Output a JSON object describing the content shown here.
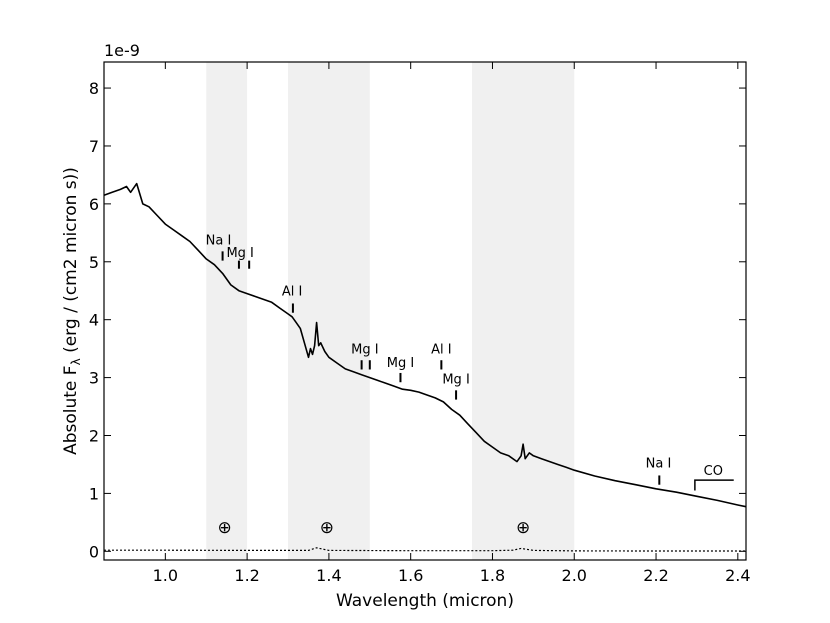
{
  "chart_data": {
    "type": "line",
    "title": "",
    "xlabel": "Wavelength (micron)",
    "ylabel_prefix": "Absolute F",
    "ylabel_sub": "λ",
    "ylabel_suffix": " (erg / (cm2 micron s))",
    "y_multiplier_label": "1e-9",
    "xlim": [
      0.85,
      2.42
    ],
    "ylim": [
      -0.15,
      8.45
    ],
    "grid": false,
    "legend": "none",
    "x_ticks": [
      {
        "v": 1.0,
        "label": "1.0"
      },
      {
        "v": 1.2,
        "label": "1.2"
      },
      {
        "v": 1.4,
        "label": "1.4"
      },
      {
        "v": 1.6,
        "label": "1.6"
      },
      {
        "v": 1.8,
        "label": "1.8"
      },
      {
        "v": 2.0,
        "label": "2.0"
      },
      {
        "v": 2.2,
        "label": "2.2"
      },
      {
        "v": 2.4,
        "label": "2.4"
      }
    ],
    "y_ticks": [
      {
        "v": 0,
        "label": "0"
      },
      {
        "v": 1,
        "label": "1"
      },
      {
        "v": 2,
        "label": "2"
      },
      {
        "v": 3,
        "label": "3"
      },
      {
        "v": 4,
        "label": "4"
      },
      {
        "v": 5,
        "label": "5"
      },
      {
        "v": 6,
        "label": "6"
      },
      {
        "v": 7,
        "label": "7"
      },
      {
        "v": 8,
        "label": "8"
      }
    ],
    "telluric_bands": [
      [
        1.1,
        1.2
      ],
      [
        1.3,
        1.5
      ],
      [
        1.75,
        2.0
      ]
    ],
    "telluric_symbols": [
      {
        "x": 1.145,
        "y": 0.42,
        "label": "⊕"
      },
      {
        "x": 1.395,
        "y": 0.42,
        "label": "⊕"
      },
      {
        "x": 1.875,
        "y": 0.42,
        "label": "⊕"
      }
    ],
    "series": [
      {
        "style": "solid",
        "color": "#000000",
        "x": [
          0.85,
          0.87,
          0.89,
          0.905,
          0.915,
          0.93,
          0.945,
          0.96,
          0.98,
          1.0,
          1.02,
          1.04,
          1.06,
          1.08,
          1.1,
          1.12,
          1.14,
          1.16,
          1.18,
          1.2,
          1.22,
          1.24,
          1.26,
          1.28,
          1.3,
          1.31,
          1.32,
          1.33,
          1.34,
          1.35,
          1.355,
          1.36,
          1.365,
          1.37,
          1.375,
          1.38,
          1.39,
          1.4,
          1.42,
          1.44,
          1.46,
          1.48,
          1.5,
          1.52,
          1.54,
          1.56,
          1.58,
          1.6,
          1.62,
          1.64,
          1.66,
          1.68,
          1.7,
          1.72,
          1.74,
          1.76,
          1.78,
          1.8,
          1.82,
          1.84,
          1.86,
          1.87,
          1.875,
          1.88,
          1.89,
          1.9,
          1.92,
          1.94,
          1.96,
          1.98,
          2.0,
          2.05,
          2.1,
          2.15,
          2.2,
          2.25,
          2.3,
          2.35,
          2.4,
          2.42
        ],
        "y": [
          6.15,
          6.2,
          6.25,
          6.3,
          6.2,
          6.35,
          6.0,
          5.95,
          5.8,
          5.65,
          5.55,
          5.45,
          5.35,
          5.2,
          5.05,
          4.95,
          4.8,
          4.6,
          4.5,
          4.45,
          4.4,
          4.35,
          4.3,
          4.2,
          4.1,
          4.05,
          3.95,
          3.85,
          3.6,
          3.35,
          3.5,
          3.4,
          3.55,
          3.95,
          3.55,
          3.6,
          3.45,
          3.35,
          3.25,
          3.15,
          3.1,
          3.05,
          3.0,
          2.95,
          2.9,
          2.85,
          2.8,
          2.78,
          2.75,
          2.7,
          2.65,
          2.58,
          2.45,
          2.35,
          2.2,
          2.05,
          1.9,
          1.8,
          1.7,
          1.65,
          1.55,
          1.65,
          1.85,
          1.6,
          1.7,
          1.65,
          1.6,
          1.55,
          1.5,
          1.45,
          1.4,
          1.3,
          1.22,
          1.15,
          1.08,
          1.02,
          0.95,
          0.88,
          0.8,
          0.77
        ]
      },
      {
        "style": "dotted",
        "color": "#000000",
        "x": [
          0.85,
          1.0,
          1.2,
          1.35,
          1.37,
          1.4,
          1.6,
          1.8,
          1.85,
          1.87,
          1.9,
          2.0,
          2.2,
          2.42
        ],
        "y": [
          0.02,
          0.02,
          0.015,
          0.015,
          0.06,
          0.015,
          0.01,
          0.01,
          0.02,
          0.05,
          0.015,
          0.008,
          0.005,
          0.005
        ]
      }
    ],
    "line_annotations": [
      {
        "label": "Na I",
        "label_x": 1.13,
        "label_y": 5.3,
        "ticks": [
          {
            "x": 1.14,
            "y0": 5.02,
            "y1": 5.18
          }
        ]
      },
      {
        "label": "Mg I",
        "label_x": 1.183,
        "label_y": 5.08,
        "ticks": [
          {
            "x": 1.18,
            "y0": 4.88,
            "y1": 5.02
          },
          {
            "x": 1.205,
            "y0": 4.88,
            "y1": 5.02
          }
        ]
      },
      {
        "label": "Al I",
        "label_x": 1.31,
        "label_y": 4.42,
        "ticks": [
          {
            "x": 1.312,
            "y0": 4.12,
            "y1": 4.28
          }
        ]
      },
      {
        "label": "Mg I",
        "label_x": 1.488,
        "label_y": 3.42,
        "ticks": [
          {
            "x": 1.48,
            "y0": 3.14,
            "y1": 3.3
          },
          {
            "x": 1.5,
            "y0": 3.14,
            "y1": 3.3
          }
        ]
      },
      {
        "label": "Mg I",
        "label_x": 1.575,
        "label_y": 3.18,
        "ticks": [
          {
            "x": 1.575,
            "y0": 2.92,
            "y1": 3.08
          }
        ]
      },
      {
        "label": "Al I",
        "label_x": 1.675,
        "label_y": 3.42,
        "ticks": [
          {
            "x": 1.675,
            "y0": 3.14,
            "y1": 3.3
          }
        ]
      },
      {
        "label": "Mg I",
        "label_x": 1.711,
        "label_y": 2.9,
        "ticks": [
          {
            "x": 1.711,
            "y0": 2.62,
            "y1": 2.78
          }
        ]
      },
      {
        "label": "Na I",
        "label_x": 2.206,
        "label_y": 1.45,
        "ticks": [
          {
            "x": 2.208,
            "y0": 1.15,
            "y1": 1.31
          }
        ]
      }
    ],
    "co_annotation": {
      "label": "CO",
      "x_start": 2.295,
      "x_end": 2.39,
      "y_bar": 1.23,
      "y_tick_bottom": 1.05,
      "label_x": 2.34,
      "label_y": 1.32
    }
  }
}
